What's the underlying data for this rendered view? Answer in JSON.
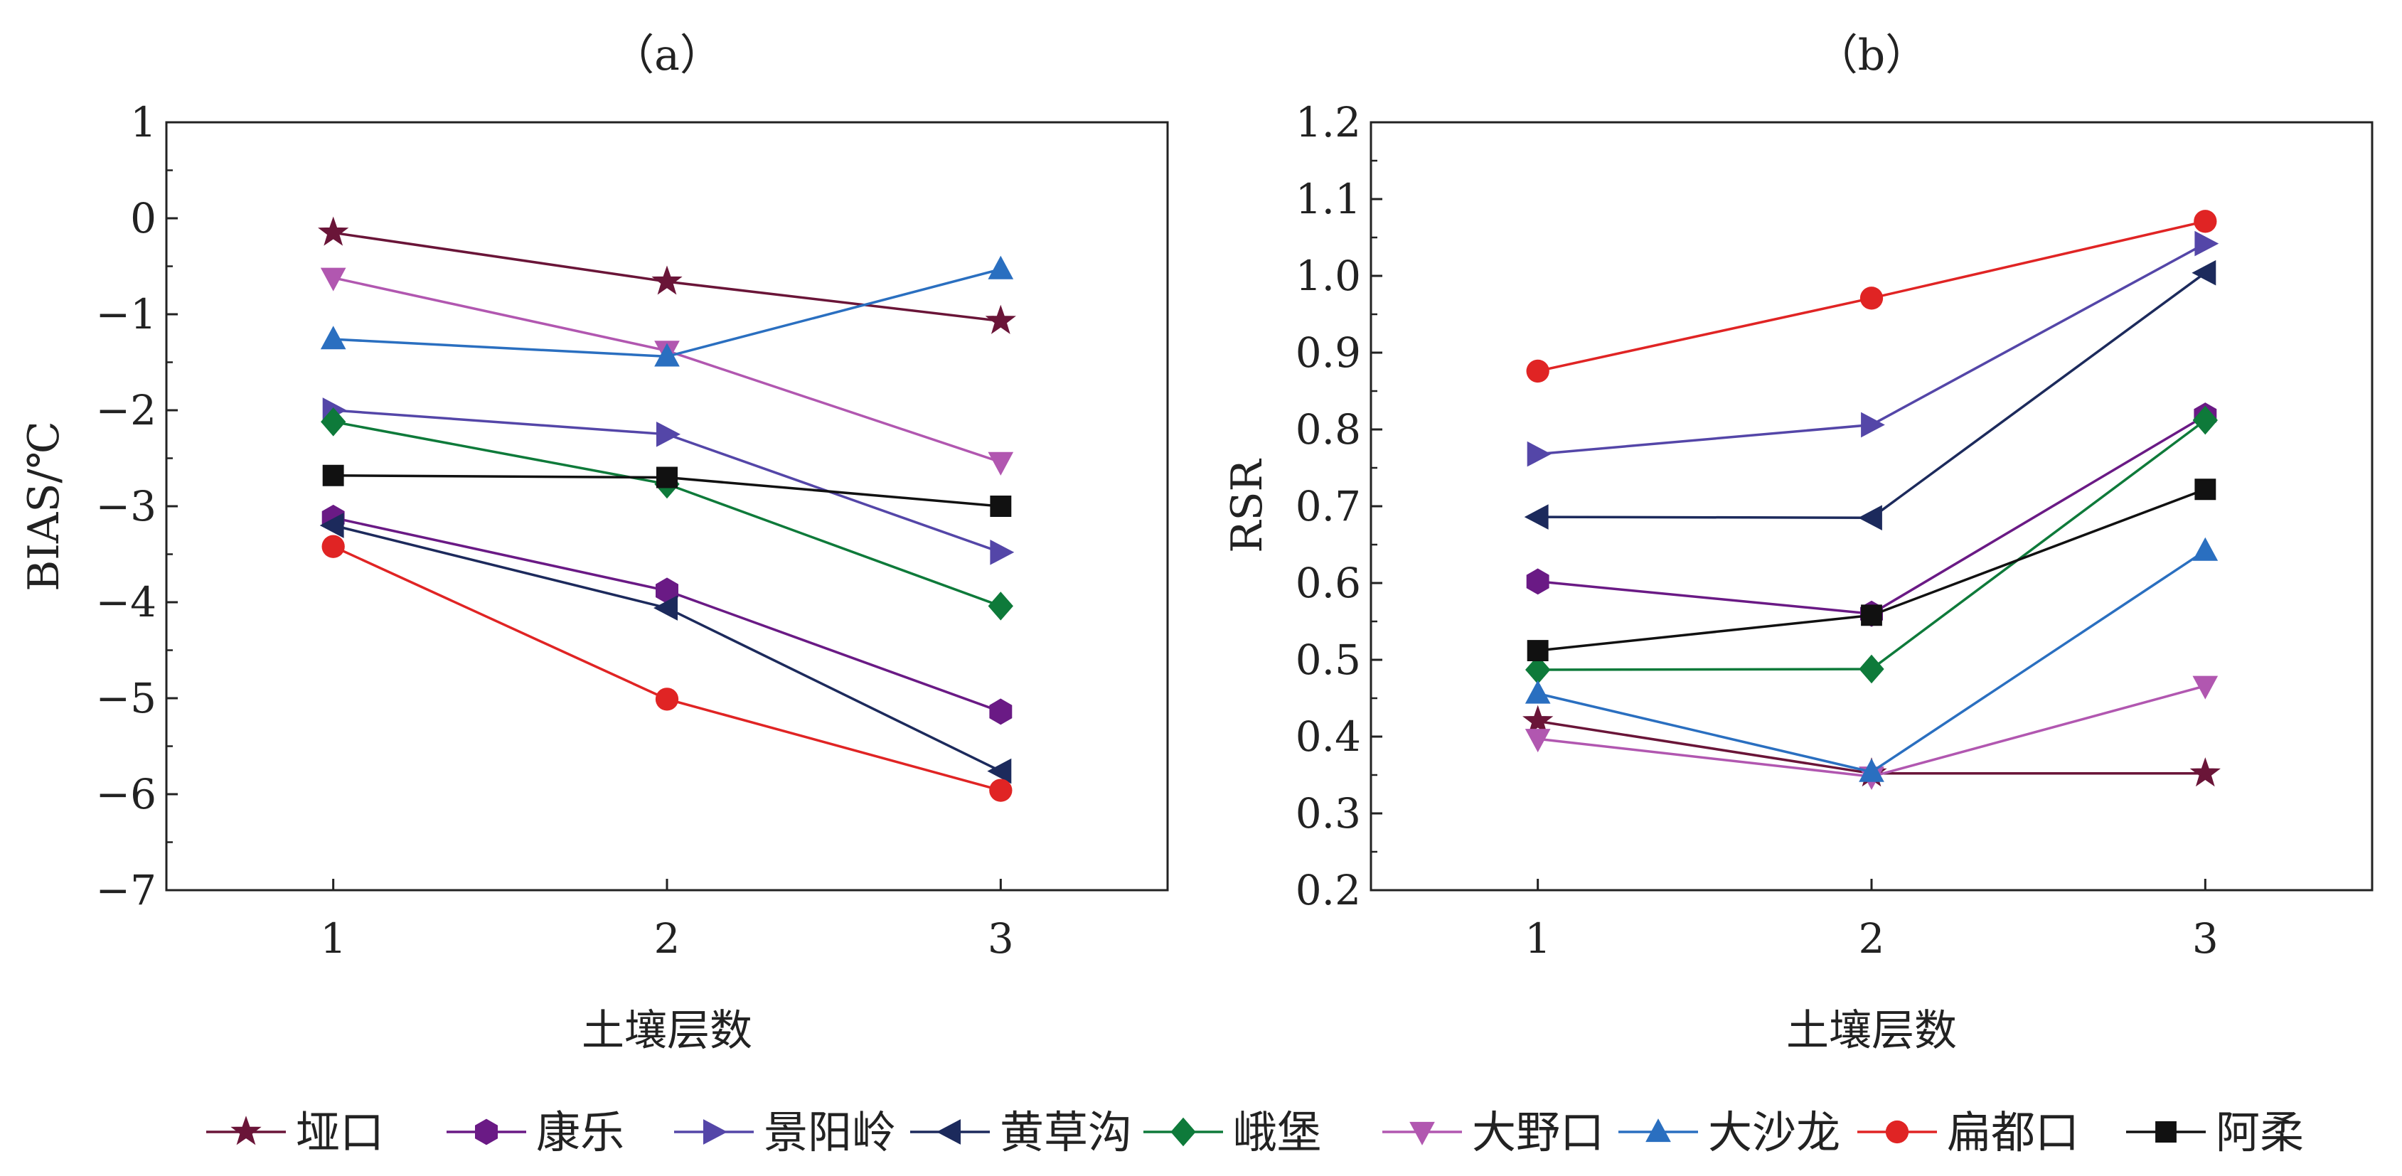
{
  "legend": {
    "entries": [
      {
        "label": "垭口",
        "color": "#6a1538",
        "marker": "star"
      },
      {
        "label": "康乐",
        "color": "#6a1a85",
        "marker": "hexagon"
      },
      {
        "label": "景阳岭",
        "color": "#5446a8",
        "marker": "triangle-right"
      },
      {
        "label": "黄草沟",
        "color": "#1c2a5c",
        "marker": "triangle-left"
      },
      {
        "label": "峨堡",
        "color": "#0e7a3a",
        "marker": "diamond"
      },
      {
        "label": "大野口",
        "color": "#b157b0",
        "marker": "triangle-down"
      },
      {
        "label": "大沙龙",
        "color": "#2a6fc0",
        "marker": "triangle-up"
      },
      {
        "label": "扁都口",
        "color": "#e02424",
        "marker": "circle"
      },
      {
        "label": "阿柔",
        "color": "#111111",
        "marker": "square"
      }
    ]
  },
  "chart_data": [
    {
      "type": "line",
      "title": "（a）",
      "xlabel": "土壤层数",
      "ylabel": "BIAS/℃",
      "x": [
        1,
        2,
        3
      ],
      "xlim": [
        0.5,
        3.5
      ],
      "ylim": [
        -7,
        1
      ],
      "xticks": [
        "1",
        "2",
        "3"
      ],
      "yticks": [
        "1",
        "0",
        "−1",
        "−2",
        "−3",
        "−4",
        "−5",
        "−6",
        "−7"
      ],
      "grid": false,
      "series": [
        {
          "name": "垭口",
          "values": [
            -0.15,
            -0.66,
            -1.07
          ]
        },
        {
          "name": "康乐",
          "values": [
            -3.12,
            -3.88,
            -5.14
          ]
        },
        {
          "name": "景阳岭",
          "values": [
            -2.0,
            -2.25,
            -3.48
          ]
        },
        {
          "name": "黄草沟",
          "values": [
            -3.2,
            -4.06,
            -5.76
          ]
        },
        {
          "name": "峨堡",
          "values": [
            -2.12,
            -2.77,
            -4.04
          ]
        },
        {
          "name": "大野口",
          "values": [
            -0.62,
            -1.38,
            -2.54
          ]
        },
        {
          "name": "大沙龙",
          "values": [
            -1.26,
            -1.44,
            -0.53
          ]
        },
        {
          "name": "扁都口",
          "values": [
            -3.42,
            -5.01,
            -5.96
          ]
        },
        {
          "name": "阿柔",
          "values": [
            -2.68,
            -2.7,
            -3.0
          ]
        }
      ]
    },
    {
      "type": "line",
      "title": "（b）",
      "xlabel": "土壤层数",
      "ylabel": "RSR",
      "x": [
        1,
        2,
        3
      ],
      "xlim": [
        0.5,
        3.5
      ],
      "ylim": [
        0.2,
        1.2
      ],
      "xticks": [
        "1",
        "2",
        "3"
      ],
      "yticks": [
        "1.2",
        "1.1",
        "1.0",
        "0.9",
        "0.8",
        "0.7",
        "0.6",
        "0.5",
        "0.4",
        "0.3",
        "0.2"
      ],
      "grid": false,
      "series": [
        {
          "name": "垭口",
          "values": [
            0.42,
            0.352,
            0.352
          ]
        },
        {
          "name": "康乐",
          "values": [
            0.602,
            0.56,
            0.818
          ]
        },
        {
          "name": "景阳岭",
          "values": [
            0.768,
            0.806,
            1.042
          ]
        },
        {
          "name": "黄草沟",
          "values": [
            0.686,
            0.685,
            1.004
          ]
        },
        {
          "name": "峨堡",
          "values": [
            0.487,
            0.488,
            0.812
          ]
        },
        {
          "name": "大野口",
          "values": [
            0.397,
            0.348,
            0.466
          ]
        },
        {
          "name": "大沙龙",
          "values": [
            0.456,
            0.354,
            0.642
          ]
        },
        {
          "name": "扁都口",
          "values": [
            0.876,
            0.971,
            1.071
          ]
        },
        {
          "name": "阿柔",
          "values": [
            0.512,
            0.558,
            0.722
          ]
        }
      ]
    }
  ]
}
